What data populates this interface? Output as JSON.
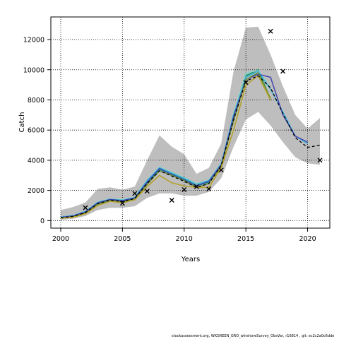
{
  "chart_data": {
    "type": "line",
    "xlabel": "Years",
    "ylabel": "Catch",
    "xlim": [
      1999.2,
      2021.8
    ],
    "ylim": [
      -500,
      13500
    ],
    "x_ticks": [
      2000,
      2005,
      2010,
      2015,
      2020
    ],
    "y_ticks": [
      0,
      2000,
      4000,
      6000,
      8000,
      10000,
      12000
    ],
    "grid": "dotted",
    "legend": "none",
    "band": {
      "color": "#bebebe",
      "x": [
        2000,
        2001,
        2002,
        2003,
        2004,
        2005,
        2006,
        2007,
        2008,
        2009,
        2010,
        2011,
        2012,
        2013,
        2014,
        2015,
        2016,
        2017,
        2018,
        2019,
        2020,
        2021
      ],
      "lower": [
        50,
        120,
        300,
        700,
        850,
        850,
        950,
        1500,
        1800,
        1800,
        1650,
        1650,
        1900,
        2800,
        4900,
        6700,
        7200,
        6300,
        5200,
        4200,
        3800,
        3700
      ],
      "upper": [
        700,
        900,
        1200,
        2100,
        2200,
        2050,
        2250,
        4000,
        5650,
        4900,
        4400,
        3100,
        3500,
        5100,
        9900,
        12800,
        12850,
        11000,
        8900,
        7000,
        6100,
        6800
      ]
    },
    "series": [
      {
        "color": "#1b9e77",
        "width": 1.8,
        "dash": "",
        "x": [
          2000,
          2001,
          2002,
          2003,
          2004,
          2005,
          2006,
          2007,
          2008,
          2009,
          2010,
          2011,
          2012,
          2013,
          2014,
          2015,
          2016,
          2017
        ],
        "y": [
          200,
          300,
          550,
          1150,
          1380,
          1280,
          1480,
          2500,
          3400,
          3100,
          2750,
          2300,
          2550,
          3650,
          6800,
          9600,
          10000,
          8000
        ]
      },
      {
        "color": "#8dd3c7",
        "width": 1.4,
        "dash": "",
        "x": [
          2000,
          2001,
          2002,
          2003,
          2004,
          2005,
          2006,
          2007,
          2008,
          2009,
          2010,
          2011,
          2012,
          2013,
          2014,
          2015,
          2016,
          2017
        ],
        "y": [
          250,
          350,
          620,
          1250,
          1440,
          1380,
          1560,
          2700,
          3550,
          3200,
          2850,
          2450,
          2700,
          3800,
          7100,
          9800,
          9950,
          8800
        ]
      },
      {
        "color": "#3ab0d8",
        "width": 1.5,
        "dash": "",
        "x": [
          2000,
          2001,
          2002,
          2003,
          2004,
          2005,
          2006,
          2007,
          2008,
          2009,
          2010,
          2011,
          2012,
          2013,
          2014,
          2015,
          2016,
          2017,
          2018,
          2019,
          2020
        ],
        "y": [
          230,
          330,
          600,
          1200,
          1420,
          1350,
          1520,
          2650,
          3500,
          3150,
          2800,
          2400,
          2650,
          3750,
          7000,
          9500,
          9900,
          8700,
          7200,
          5600,
          5100
        ]
      },
      {
        "color": "#3f3fb0",
        "width": 1.4,
        "dash": "",
        "x": [
          2000,
          2001,
          2002,
          2003,
          2004,
          2005,
          2006,
          2007,
          2008,
          2009,
          2010,
          2011,
          2012,
          2013,
          2014,
          2015,
          2016,
          2017,
          2018,
          2019,
          2020
        ],
        "y": [
          210,
          310,
          570,
          1180,
          1400,
          1320,
          1500,
          2550,
          3450,
          3050,
          2700,
          2300,
          2600,
          3700,
          6900,
          9350,
          9700,
          9500,
          7000,
          5600,
          5200
        ]
      },
      {
        "color": "#6a8f2e",
        "width": 1.4,
        "dash": "",
        "x": [
          2000,
          2001,
          2002,
          2003,
          2004,
          2005,
          2006,
          2007,
          2008,
          2009,
          2010,
          2011,
          2012,
          2013,
          2014,
          2015,
          2016,
          2017
        ],
        "y": [
          170,
          260,
          500,
          1080,
          1330,
          1230,
          1420,
          2400,
          3300,
          3000,
          2650,
          2200,
          2450,
          3600,
          6600,
          9350,
          9800,
          8100
        ]
      },
      {
        "color": "#b5a02a",
        "width": 1.6,
        "dash": "",
        "x": [
          2000,
          2001,
          2002,
          2003,
          2004,
          2005,
          2006,
          2007,
          2008,
          2009,
          2010,
          2011,
          2012,
          2013,
          2014,
          2015,
          2016,
          2017
        ],
        "y": [
          150,
          220,
          450,
          1000,
          1280,
          1180,
          1380,
          2250,
          3000,
          2500,
          2300,
          2200,
          2200,
          3500,
          6000,
          9000,
          9600,
          8000
        ]
      },
      {
        "color": "#000000",
        "width": 1.3,
        "dash": "4,3",
        "x": [
          2000,
          2001,
          2002,
          2003,
          2004,
          2005,
          2006,
          2007,
          2008,
          2009,
          2010,
          2011,
          2012,
          2013,
          2014,
          2015,
          2016,
          2017,
          2018,
          2019,
          2020,
          2021
        ],
        "y": [
          180,
          280,
          520,
          1120,
          1360,
          1260,
          1460,
          2450,
          3300,
          2950,
          2600,
          2200,
          2450,
          3650,
          6700,
          9250,
          9600,
          8800,
          7100,
          5500,
          4850,
          5000
        ]
      }
    ],
    "points": {
      "marker": "x",
      "x": [
        2002,
        2005,
        2006,
        2007,
        2009,
        2010,
        2011,
        2012,
        2013,
        2015,
        2017,
        2018,
        2021
      ],
      "y": [
        850,
        1150,
        1800,
        1950,
        1350,
        2050,
        2250,
        2100,
        3350,
        9150,
        12550,
        9900,
        4000
      ]
    }
  },
  "footer": {
    "text": "stockassessment.org, WKGREEN_GRO_wInshoreSurvey_ObsVar, r16814 , git: ec2c2a0c6dde"
  }
}
